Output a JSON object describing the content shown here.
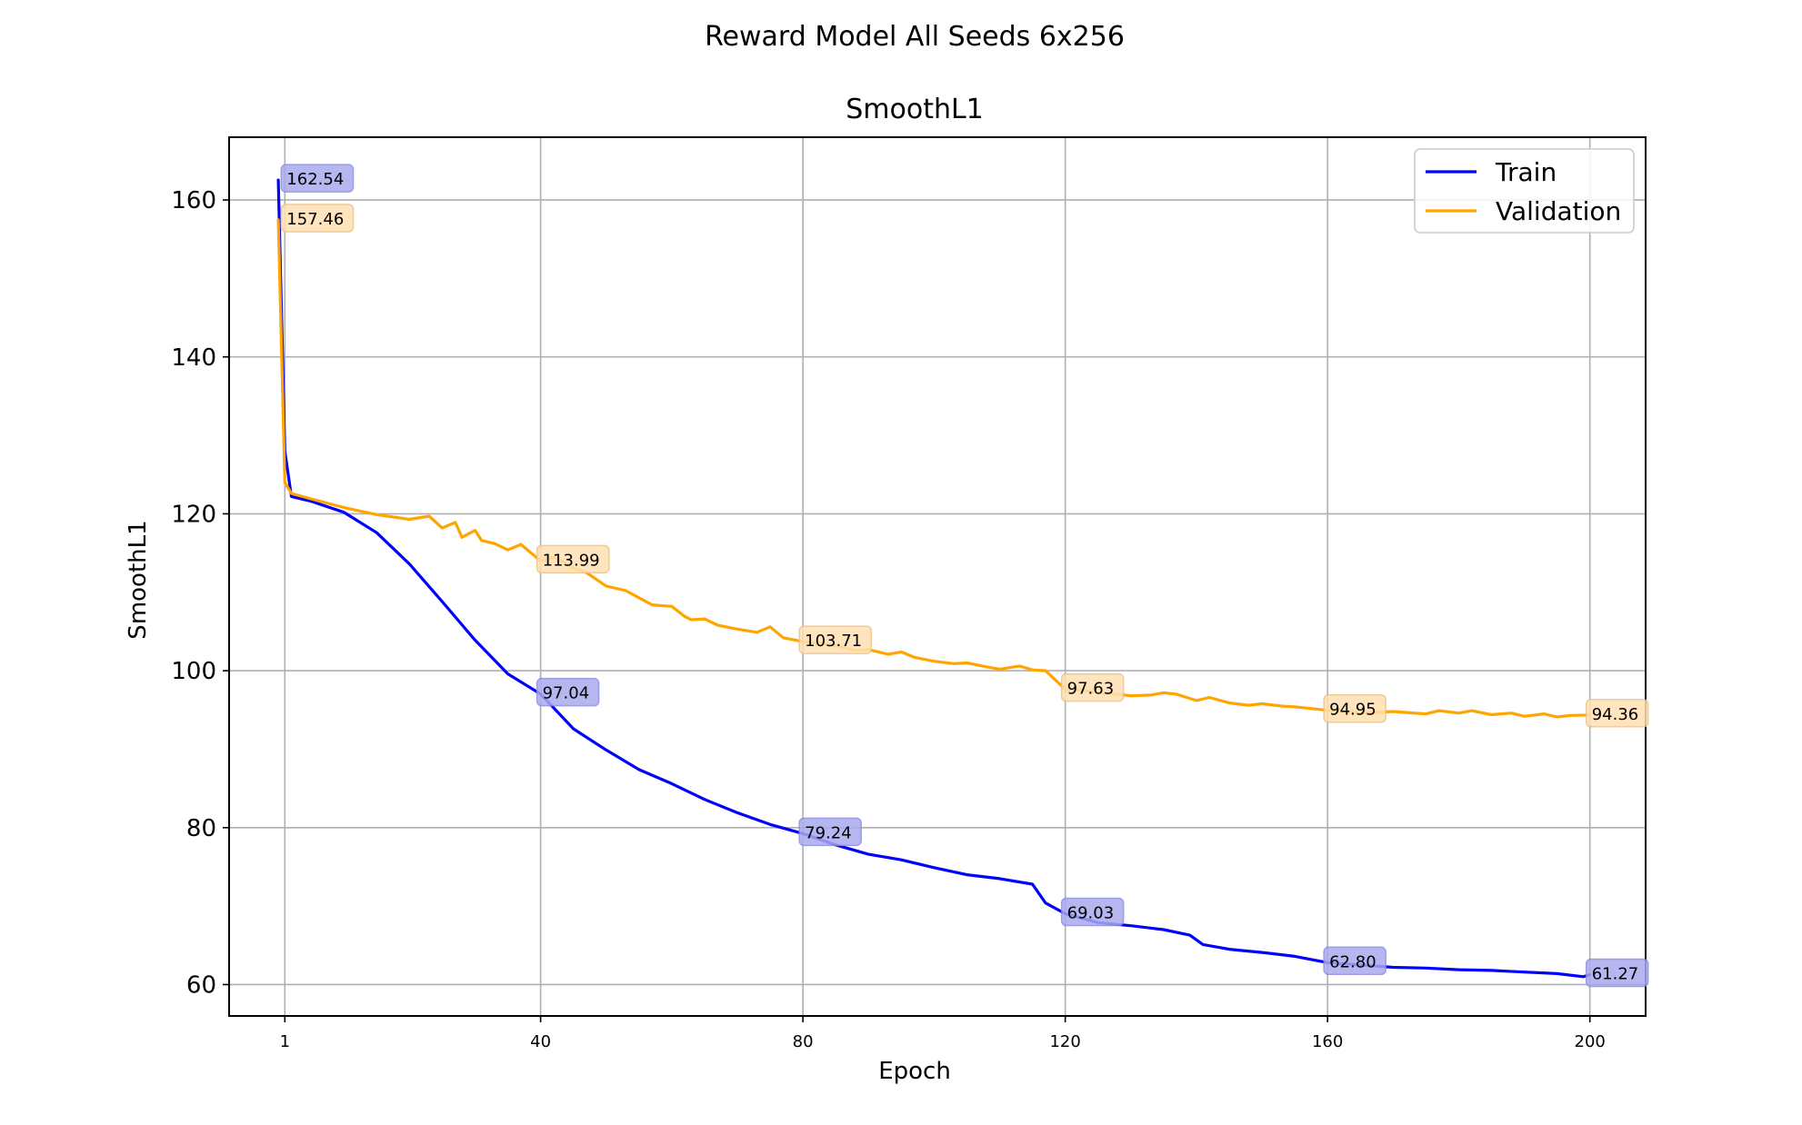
{
  "figure": {
    "title": "Reward Model All Seeds 6x256"
  },
  "chart_data": {
    "type": "line",
    "title": "SmoothL1",
    "xlabel": "Epoch",
    "ylabel": "SmoothL1",
    "xlim": [
      -7.5,
      208.5
    ],
    "ylim": [
      56,
      168
    ],
    "xticks": [
      1,
      40,
      80,
      120,
      160,
      200
    ],
    "yticks": [
      60,
      80,
      100,
      120,
      140,
      160
    ],
    "grid": true,
    "legend_position": "top-right",
    "series": [
      {
        "name": "Train",
        "color": "#0000ff",
        "x": [
          0,
          1,
          2,
          5,
          10,
          15,
          20,
          25,
          30,
          35,
          40,
          45,
          50,
          55,
          60,
          65,
          70,
          75,
          80,
          85,
          90,
          95,
          100,
          105,
          110,
          115,
          117,
          120,
          125,
          130,
          135,
          139,
          141,
          145,
          150,
          155,
          160,
          165,
          170,
          175,
          180,
          185,
          190,
          195,
          199,
          200
        ],
        "y": [
          162.54,
          128,
          122.2,
          121.6,
          120.2,
          117.6,
          113.6,
          108.8,
          103.9,
          99.6,
          97.04,
          92.6,
          89.9,
          87.4,
          85.6,
          83.6,
          81.9,
          80.4,
          79.24,
          77.8,
          76.6,
          75.9,
          74.9,
          74.0,
          73.5,
          72.8,
          70.4,
          69.03,
          67.9,
          67.5,
          67.0,
          66.3,
          65.1,
          64.5,
          64.1,
          63.6,
          62.8,
          62.5,
          62.2,
          62.1,
          61.9,
          61.8,
          61.6,
          61.4,
          61.0,
          61.27
        ]
      },
      {
        "name": "Validation",
        "color": "#ffa500",
        "x": [
          0,
          1,
          2,
          5,
          10,
          15,
          20,
          23,
          25,
          27,
          28,
          30,
          31,
          33,
          35,
          37,
          40,
          42,
          45,
          47,
          50,
          53,
          55,
          57,
          60,
          62,
          63,
          65,
          67,
          70,
          73,
          75,
          77,
          80,
          83,
          85,
          88,
          90,
          93,
          95,
          97,
          100,
          103,
          105,
          108,
          110,
          113,
          115,
          117,
          120,
          123,
          125,
          128,
          130,
          133,
          135,
          137,
          140,
          142,
          145,
          148,
          150,
          153,
          155,
          160,
          163,
          165,
          170,
          175,
          177,
          180,
          182,
          185,
          188,
          190,
          193,
          195,
          197,
          200
        ],
        "y": [
          157.46,
          124,
          122.6,
          121.9,
          120.8,
          119.9,
          119.3,
          119.7,
          118.2,
          118.9,
          117.0,
          117.9,
          116.6,
          116.2,
          115.4,
          116.1,
          113.99,
          114.5,
          113.1,
          112.5,
          110.8,
          110.2,
          109.3,
          108.4,
          108.2,
          106.9,
          106.5,
          106.6,
          105.8,
          105.3,
          104.9,
          105.6,
          104.2,
          103.71,
          103.5,
          103.2,
          102.6,
          102.7,
          102.1,
          102.4,
          101.7,
          101.2,
          100.9,
          101.0,
          100.5,
          100.2,
          100.6,
          100.1,
          100.0,
          97.63,
          97.5,
          97.2,
          97.0,
          96.8,
          96.9,
          97.2,
          97.0,
          96.2,
          96.6,
          95.9,
          95.6,
          95.8,
          95.5,
          95.4,
          94.95,
          94.8,
          94.6,
          94.8,
          94.5,
          94.9,
          94.6,
          94.9,
          94.4,
          94.6,
          94.2,
          94.5,
          94.1,
          94.3,
          94.36
        ]
      }
    ],
    "annotations": [
      {
        "series": "Train",
        "x": 1,
        "y": 162.54,
        "label": "162.54"
      },
      {
        "series": "Train",
        "x": 40,
        "y": 97.04,
        "label": "97.04"
      },
      {
        "series": "Train",
        "x": 80,
        "y": 79.24,
        "label": "79.24"
      },
      {
        "series": "Train",
        "x": 120,
        "y": 69.03,
        "label": "69.03"
      },
      {
        "series": "Train",
        "x": 160,
        "y": 62.8,
        "label": "62.80"
      },
      {
        "series": "Train",
        "x": 200,
        "y": 61.27,
        "label": "61.27"
      },
      {
        "series": "Validation",
        "x": 1,
        "y": 157.46,
        "label": "157.46"
      },
      {
        "series": "Validation",
        "x": 40,
        "y": 113.99,
        "label": "113.99"
      },
      {
        "series": "Validation",
        "x": 80,
        "y": 103.71,
        "label": "103.71"
      },
      {
        "series": "Validation",
        "x": 120,
        "y": 97.63,
        "label": "97.63"
      },
      {
        "series": "Validation",
        "x": 160,
        "y": 94.95,
        "label": "94.95"
      },
      {
        "series": "Validation",
        "x": 200,
        "y": 94.36,
        "label": "94.36"
      }
    ],
    "annotation_colors": {
      "Train": "#aaaaee",
      "Validation": "#ffe0b2"
    }
  }
}
